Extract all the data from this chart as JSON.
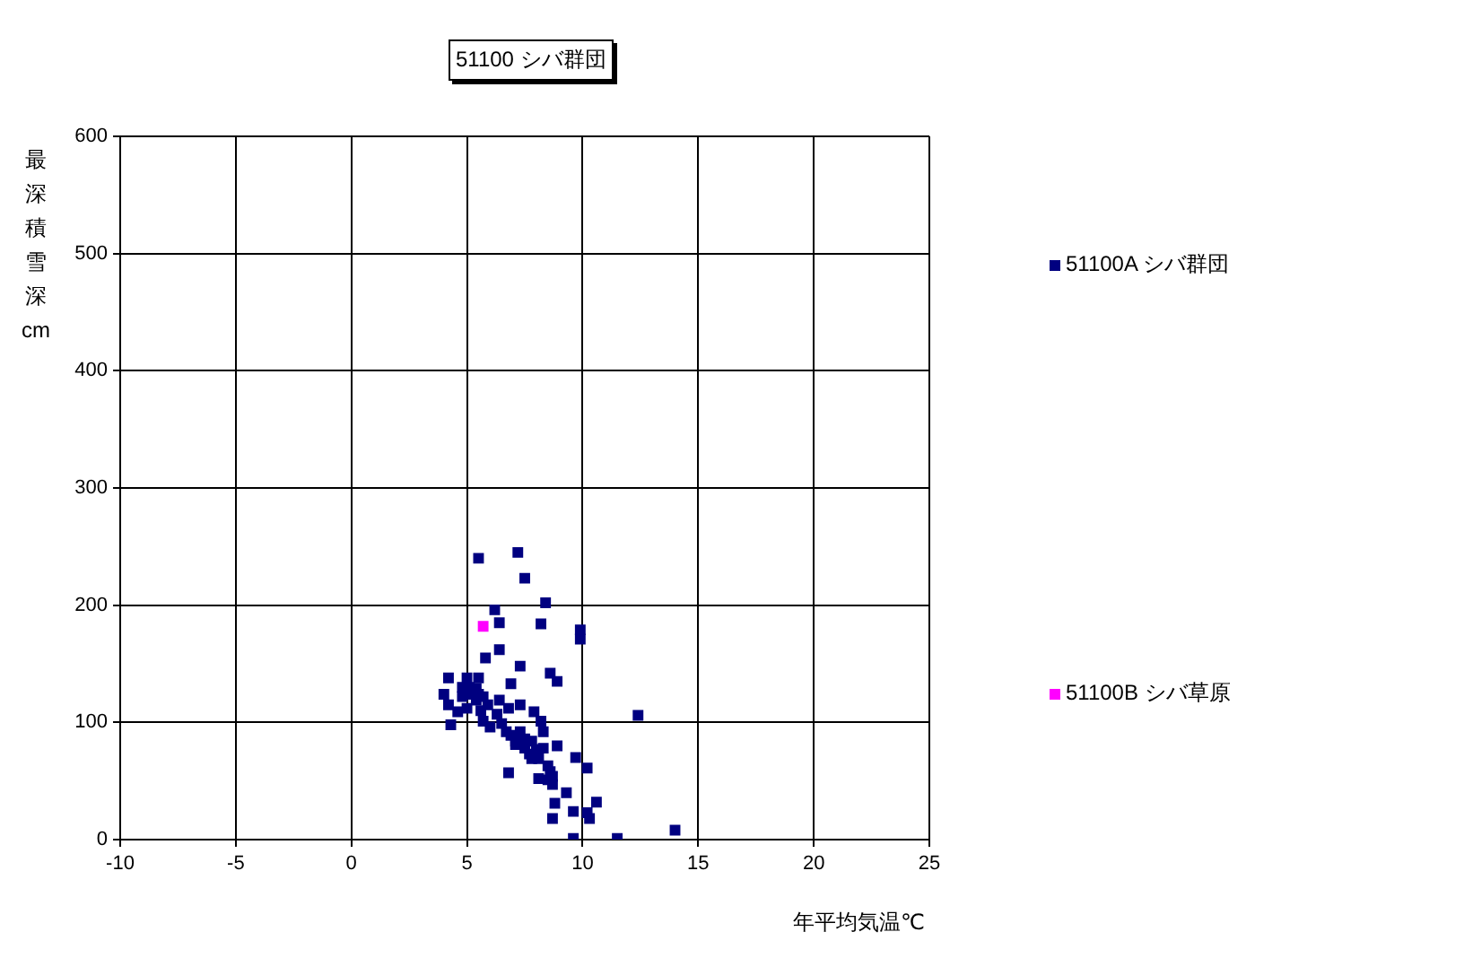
{
  "chart_data": {
    "type": "scatter",
    "title": "51100 シバ群団",
    "xlabel": "年平均気温℃",
    "ylabel": "最深積雪深cm",
    "xlim": [
      -10,
      25
    ],
    "xticks": [
      -10,
      -5,
      0,
      5,
      10,
      15,
      20,
      25
    ],
    "ylim": [
      0,
      600
    ],
    "yticks": [
      0,
      100,
      200,
      300,
      400,
      500,
      600
    ],
    "grid": true,
    "legend": "right",
    "marker": "square",
    "series": [
      {
        "name": "51100A シバ群団",
        "color": "#000080",
        "x": [
          5.5,
          7.2,
          7.5,
          8.4,
          6.2,
          6.4,
          8.2,
          9.9,
          9.9,
          6.4,
          5.8,
          7.3,
          8.6,
          8.9,
          4.2,
          5.0,
          5.5,
          6.9,
          4.0,
          4.2,
          4.3,
          4.6,
          4.8,
          5.0,
          5.1,
          5.4,
          5.5,
          5.6,
          5.9,
          5.7,
          6.0,
          6.3,
          6.4,
          6.5,
          6.7,
          6.8,
          6.9,
          7.1,
          7.1,
          7.3,
          7.3,
          7.5,
          7.5,
          7.7,
          7.8,
          7.9,
          8.0,
          7.8,
          8.1,
          8.2,
          8.3,
          8.3,
          8.5,
          8.6,
          8.7,
          8.1,
          8.5,
          8.7,
          8.9,
          9.7,
          10.2,
          9.3,
          8.8,
          8.7,
          9.6,
          10.2,
          10.6,
          10.3,
          9.6,
          11.5,
          12.4,
          14.0,
          6.8,
          4.8,
          5.1,
          5.4,
          5.7
        ],
        "values": [
          240,
          245,
          223,
          202,
          196,
          185,
          184,
          179,
          171,
          162,
          155,
          148,
          142,
          135,
          138,
          138,
          138,
          133,
          124,
          115,
          98,
          109,
          122,
          112,
          124,
          119,
          124,
          110,
          115,
          101,
          96,
          107,
          119,
          99,
          92,
          112,
          89,
          84,
          81,
          115,
          92,
          86,
          78,
          73,
          84,
          109,
          77,
          69,
          69,
          101,
          92,
          78,
          63,
          58,
          54,
          52,
          51,
          47,
          80,
          70,
          61,
          40,
          31,
          18,
          24,
          23,
          32,
          18,
          1,
          1,
          106,
          8,
          57,
          130,
          130,
          129,
          122
        ]
      },
      {
        "name": "51100B シバ草原",
        "color": "#ff00ff",
        "x": [
          5.7
        ],
        "values": [
          182
        ]
      }
    ]
  }
}
